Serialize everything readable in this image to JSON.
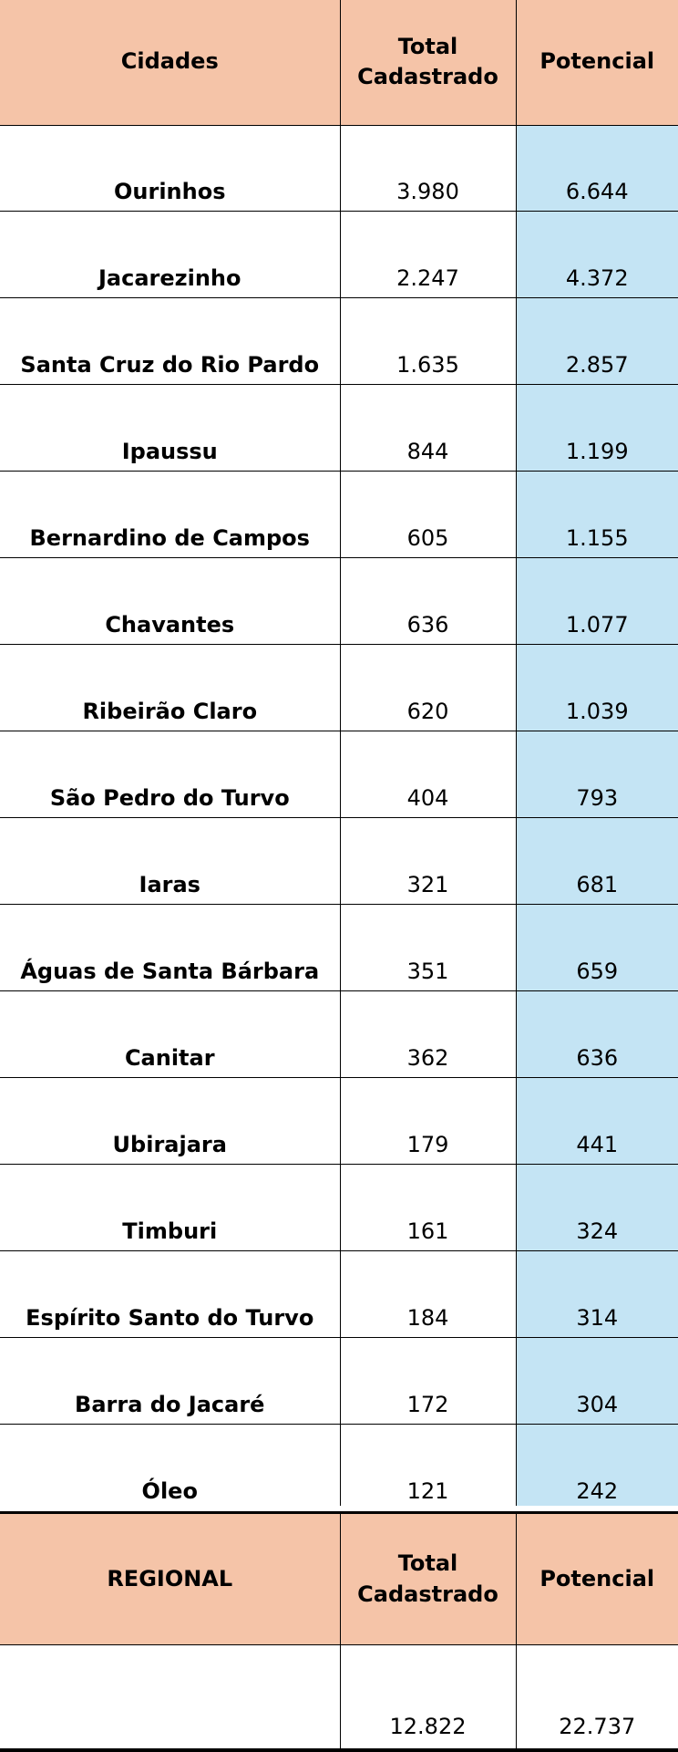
{
  "main_table": {
    "headers": [
      "Cidades",
      "Total\nCadastrado",
      "Potencial"
    ],
    "rows": [
      [
        "Ourinhos",
        "3.980",
        "6.644"
      ],
      [
        "Jacarezinho",
        "2.247",
        "4.372"
      ],
      [
        "Santa Cruz do Rio Pardo",
        "1.635",
        "2.857"
      ],
      [
        "Ipaussu",
        "844",
        "1.199"
      ],
      [
        "Bernardino de Campos",
        "605",
        "1.155"
      ],
      [
        "Chavantes",
        "636",
        "1.077"
      ],
      [
        "Ribeirão Claro",
        "620",
        "1.039"
      ],
      [
        "São Pedro do Turvo",
        "404",
        "793"
      ],
      [
        "Iaras",
        "321",
        "681"
      ],
      [
        "Águas de Santa Bárbara",
        "351",
        "659"
      ],
      [
        "Canitar",
        "362",
        "636"
      ],
      [
        "Ubirajara",
        "179",
        "441"
      ],
      [
        "Timburi",
        "161",
        "324"
      ],
      [
        "Espírito Santo do Turvo",
        "184",
        "314"
      ],
      [
        "Barra do Jacaré",
        "172",
        "304"
      ],
      [
        "Óleo",
        "121",
        "242"
      ]
    ]
  },
  "regional_table": {
    "headers": [
      "REGIONAL",
      "Total\nCadastrado",
      "Potencial"
    ],
    "row": [
      "",
      "12.822",
      "22.737"
    ]
  },
  "colors": {
    "header_bg": "#f5c4a8",
    "potencial_bg": "#c4e4f4",
    "border": "#000000"
  }
}
